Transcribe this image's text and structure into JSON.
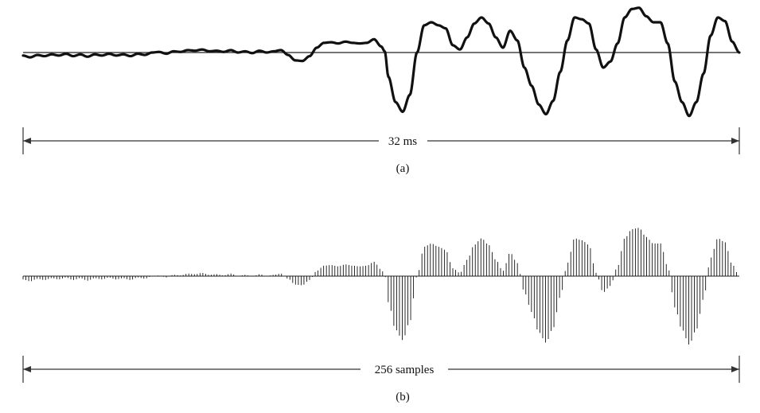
{
  "figure": {
    "panels": [
      {
        "id": "a",
        "caption": "(a)",
        "duration_label": "32 ms",
        "kind": "continuous-waveform"
      },
      {
        "id": "b",
        "caption": "(b)",
        "duration_label": "256 samples",
        "kind": "sampled-waveform",
        "sample_count": 256
      }
    ],
    "colors": {
      "ink": "#111111",
      "axis": "#333333",
      "background": "#ffffff"
    }
  },
  "signal": {
    "amplitude_units": "normalized",
    "time_start_ms": 0,
    "time_end_ms": 32,
    "envelope_points": [
      [
        0.0,
        -0.05
      ],
      [
        0.01,
        -0.08
      ],
      [
        0.02,
        -0.04
      ],
      [
        0.03,
        -0.06
      ],
      [
        0.04,
        -0.03
      ],
      [
        0.05,
        -0.05
      ],
      [
        0.06,
        -0.02
      ],
      [
        0.07,
        -0.06
      ],
      [
        0.08,
        -0.03
      ],
      [
        0.09,
        -0.07
      ],
      [
        0.1,
        -0.03
      ],
      [
        0.11,
        -0.05
      ],
      [
        0.12,
        -0.02
      ],
      [
        0.13,
        -0.05
      ],
      [
        0.14,
        -0.03
      ],
      [
        0.15,
        -0.06
      ],
      [
        0.16,
        -0.02
      ],
      [
        0.17,
        -0.04
      ],
      [
        0.18,
        0.0
      ],
      [
        0.19,
        0.01
      ],
      [
        0.2,
        -0.02
      ],
      [
        0.21,
        0.02
      ],
      [
        0.22,
        0.01
      ],
      [
        0.23,
        0.04
      ],
      [
        0.24,
        0.03
      ],
      [
        0.25,
        0.05
      ],
      [
        0.26,
        0.02
      ],
      [
        0.27,
        0.03
      ],
      [
        0.28,
        0.01
      ],
      [
        0.29,
        0.04
      ],
      [
        0.3,
        0.0
      ],
      [
        0.31,
        0.02
      ],
      [
        0.32,
        -0.01
      ],
      [
        0.33,
        0.03
      ],
      [
        0.34,
        0.0
      ],
      [
        0.35,
        0.02
      ],
      [
        0.36,
        0.04
      ],
      [
        0.37,
        -0.04
      ],
      [
        0.38,
        -0.13
      ],
      [
        0.39,
        -0.14
      ],
      [
        0.4,
        -0.06
      ],
      [
        0.41,
        0.08
      ],
      [
        0.42,
        0.16
      ],
      [
        0.43,
        0.17
      ],
      [
        0.44,
        0.15
      ],
      [
        0.45,
        0.18
      ],
      [
        0.46,
        0.16
      ],
      [
        0.47,
        0.15
      ],
      [
        0.48,
        0.16
      ],
      [
        0.49,
        0.22
      ],
      [
        0.5,
        0.1
      ],
      [
        0.505,
        0.02
      ],
      [
        0.51,
        -0.4
      ],
      [
        0.52,
        -0.82
      ],
      [
        0.53,
        -0.98
      ],
      [
        0.54,
        -0.7
      ],
      [
        0.55,
        0.0
      ],
      [
        0.56,
        0.45
      ],
      [
        0.57,
        0.5
      ],
      [
        0.58,
        0.45
      ],
      [
        0.59,
        0.4
      ],
      [
        0.6,
        0.12
      ],
      [
        0.61,
        0.05
      ],
      [
        0.62,
        0.25
      ],
      [
        0.63,
        0.48
      ],
      [
        0.64,
        0.58
      ],
      [
        0.65,
        0.48
      ],
      [
        0.66,
        0.25
      ],
      [
        0.67,
        0.08
      ],
      [
        0.68,
        0.36
      ],
      [
        0.69,
        0.2
      ],
      [
        0.7,
        -0.25
      ],
      [
        0.71,
        -0.55
      ],
      [
        0.72,
        -0.86
      ],
      [
        0.73,
        -1.02
      ],
      [
        0.74,
        -0.8
      ],
      [
        0.75,
        -0.32
      ],
      [
        0.76,
        0.2
      ],
      [
        0.77,
        0.58
      ],
      [
        0.78,
        0.55
      ],
      [
        0.79,
        0.48
      ],
      [
        0.8,
        0.05
      ],
      [
        0.81,
        -0.25
      ],
      [
        0.82,
        -0.15
      ],
      [
        0.83,
        0.15
      ],
      [
        0.84,
        0.58
      ],
      [
        0.85,
        0.72
      ],
      [
        0.86,
        0.74
      ],
      [
        0.87,
        0.6
      ],
      [
        0.88,
        0.5
      ],
      [
        0.89,
        0.5
      ],
      [
        0.9,
        0.15
      ],
      [
        0.91,
        -0.48
      ],
      [
        0.92,
        -0.82
      ],
      [
        0.93,
        -1.05
      ],
      [
        0.94,
        -0.82
      ],
      [
        0.95,
        -0.35
      ],
      [
        0.96,
        0.28
      ],
      [
        0.97,
        0.58
      ],
      [
        0.98,
        0.52
      ],
      [
        0.99,
        0.18
      ],
      [
        1.0,
        0.0
      ]
    ]
  }
}
